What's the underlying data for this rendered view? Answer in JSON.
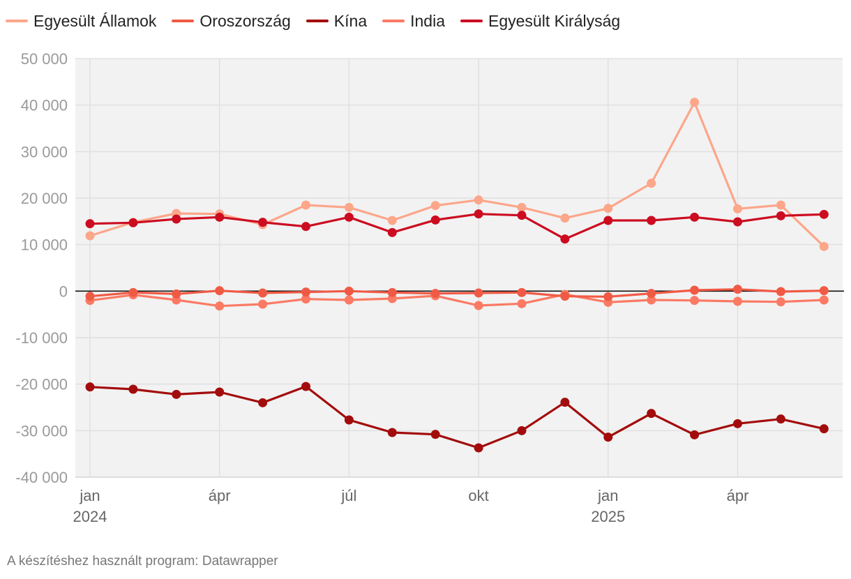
{
  "chart_data": {
    "type": "line",
    "title": "",
    "xlabel": "",
    "ylabel": "",
    "ylim": [
      -40000,
      50000
    ],
    "yticks": [
      50000,
      40000,
      30000,
      20000,
      10000,
      0,
      -10000,
      -20000,
      -30000,
      -40000
    ],
    "ytick_labels": [
      "50 000",
      "40 000",
      "30 000",
      "20 000",
      "10 000",
      "0",
      "-10 000",
      "-20 000",
      "-30 000",
      "-40 000"
    ],
    "x": [
      "2024-01",
      "2024-02",
      "2024-03",
      "2024-04",
      "2024-05",
      "2024-06",
      "2024-07",
      "2024-08",
      "2024-09",
      "2024-10",
      "2024-11",
      "2024-12",
      "2025-01",
      "2025-02",
      "2025-03",
      "2025-04",
      "2025-05",
      "2025-06"
    ],
    "xticks": [
      {
        "index": 0,
        "label": "jan",
        "year": "2024"
      },
      {
        "index": 3,
        "label": "ápr",
        "year": ""
      },
      {
        "index": 6,
        "label": "júl",
        "year": ""
      },
      {
        "index": 9,
        "label": "okt",
        "year": ""
      },
      {
        "index": 12,
        "label": "jan",
        "year": "2025"
      },
      {
        "index": 15,
        "label": "ápr",
        "year": ""
      }
    ],
    "grid": true,
    "legend_position": "top-left",
    "series": [
      {
        "name": "Egyesült Államok",
        "color": "#fca68a",
        "values": [
          11900,
          14800,
          16700,
          16600,
          14300,
          18500,
          18000,
          15200,
          18400,
          19600,
          18000,
          15700,
          17800,
          23200,
          40600,
          17700,
          18500,
          9600
        ]
      },
      {
        "name": "Oroszország",
        "color": "#f05a45",
        "values": [
          -1100,
          -300,
          -600,
          100,
          -400,
          -200,
          0,
          -300,
          -500,
          -400,
          -300,
          -1100,
          -1200,
          -500,
          200,
          400,
          -100,
          100
        ]
      },
      {
        "name": "Kína",
        "color": "#a30c0c",
        "values": [
          -20600,
          -21100,
          -22200,
          -21700,
          -24000,
          -20500,
          -27700,
          -30400,
          -30800,
          -33700,
          -30000,
          -23900,
          -31400,
          -26300,
          -30900,
          -28500,
          -27500,
          -29600
        ]
      },
      {
        "name": "India",
        "color": "#fb7a64",
        "values": [
          -2000,
          -800,
          -1900,
          -3200,
          -2800,
          -1700,
          -1900,
          -1600,
          -1000,
          -3100,
          -2700,
          -700,
          -2400,
          -1900,
          -2000,
          -2200,
          -2300,
          -1900
        ]
      },
      {
        "name": "Egyesült Királyság",
        "color": "#cc0c20",
        "values": [
          14500,
          14700,
          15500,
          15900,
          14800,
          13900,
          15900,
          12600,
          15300,
          16600,
          16300,
          11200,
          15200,
          15200,
          15900,
          14900,
          16200,
          16500
        ]
      }
    ]
  },
  "footer": {
    "credit": "A készítéshez használt program: Datawrapper"
  }
}
